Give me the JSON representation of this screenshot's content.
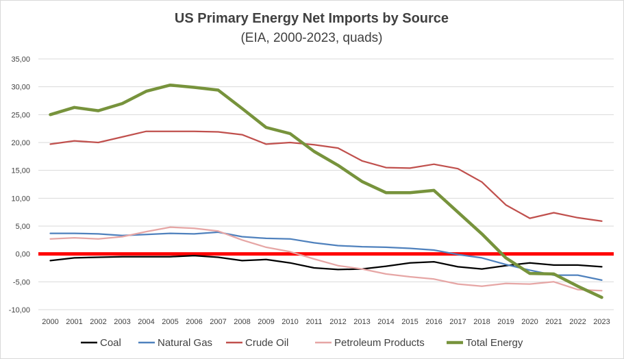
{
  "chart_data": {
    "type": "line",
    "title": "US Primary Energy Net Imports by Source",
    "subtitle": "(EIA, 2000-2023, quads)",
    "xlabel": "",
    "ylabel": "",
    "x": [
      "2000",
      "2001",
      "2002",
      "2003",
      "2004",
      "2005",
      "2006",
      "2007",
      "2008",
      "2009",
      "2010",
      "2011",
      "2012",
      "2013",
      "2014",
      "2015",
      "2016",
      "2017",
      "2018",
      "2019",
      "2020",
      "2021",
      "2022",
      "2023"
    ],
    "ylim": [
      -10,
      35
    ],
    "yticks": [
      -10,
      -5,
      0,
      5,
      10,
      15,
      20,
      25,
      30,
      35
    ],
    "ytick_labels": [
      "-10,00",
      "-5,00",
      "0,00",
      "5,00",
      "10,00",
      "15,00",
      "20,00",
      "25,00",
      "30,00",
      "35,00"
    ],
    "grid": true,
    "legend_position": "bottom",
    "zero_line_color": "#ff0000",
    "series": [
      {
        "name": "Coal",
        "color": "#000000",
        "values": [
          -1.2,
          -0.7,
          -0.6,
          -0.5,
          -0.5,
          -0.5,
          -0.3,
          -0.6,
          -1.2,
          -1.0,
          -1.6,
          -2.5,
          -2.8,
          -2.7,
          -2.2,
          -1.6,
          -1.4,
          -2.3,
          -2.7,
          -2.1,
          -1.6,
          -2.0,
          -2.0,
          -2.3
        ]
      },
      {
        "name": "Natural Gas",
        "color": "#4f81bd",
        "values": [
          3.7,
          3.7,
          3.6,
          3.3,
          3.5,
          3.7,
          3.6,
          3.9,
          3.1,
          2.8,
          2.7,
          2.0,
          1.5,
          1.3,
          1.2,
          1.0,
          0.7,
          -0.1,
          -0.7,
          -1.9,
          -2.9,
          -3.8,
          -3.8,
          -4.7
        ]
      },
      {
        "name": "Crude Oil",
        "color": "#c0504d",
        "values": [
          19.7,
          20.3,
          20.0,
          21.0,
          22.0,
          22.0,
          22.0,
          21.9,
          21.4,
          19.7,
          20.0,
          19.6,
          19.0,
          16.7,
          15.5,
          15.4,
          16.1,
          15.3,
          12.9,
          8.8,
          6.4,
          7.4,
          6.5,
          5.9
        ]
      },
      {
        "name": "Petroleum Products",
        "color": "#e6a6a5",
        "values": [
          2.7,
          2.9,
          2.7,
          3.1,
          4.0,
          4.8,
          4.6,
          4.1,
          2.5,
          1.2,
          0.4,
          -0.9,
          -2.1,
          -2.7,
          -3.6,
          -4.1,
          -4.5,
          -5.4,
          -5.8,
          -5.3,
          -5.4,
          -5.0,
          -6.4,
          -6.6
        ]
      },
      {
        "name": "Total Energy",
        "color": "#77933c",
        "values": [
          25.0,
          26.3,
          25.7,
          27.0,
          29.2,
          30.3,
          29.9,
          29.4,
          26.1,
          22.7,
          21.6,
          18.4,
          15.9,
          13.0,
          11.0,
          11.0,
          11.4,
          7.5,
          3.6,
          -0.7,
          -3.5,
          -3.6,
          -5.8,
          -7.8
        ]
      }
    ]
  }
}
